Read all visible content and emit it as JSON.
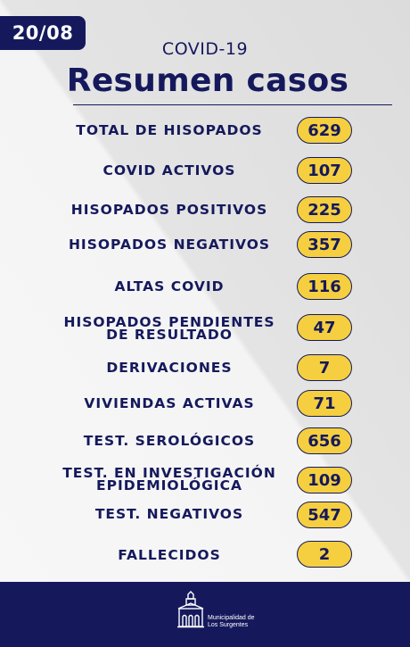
{
  "header": {
    "date": "20/08",
    "subtitle": "COVID-19",
    "title": "Resumen casos"
  },
  "rows": [
    {
      "label": "TOTAL DE HISOPADOS",
      "value": "629"
    },
    {
      "label": "COVID ACTIVOS",
      "value": "107"
    },
    {
      "label": "HISOPADOS POSITIVOS",
      "value": "225"
    },
    {
      "label": "HISOPADOS NEGATIVOS",
      "value": "357"
    },
    {
      "label": "ALTAS COVID",
      "value": "116"
    },
    {
      "label": "HISOPADOS PENDIENTES DE RESULTADO",
      "value": "47"
    },
    {
      "label": "DERIVACIONES",
      "value": "7"
    },
    {
      "label": "VIVIENDAS ACTIVAS",
      "value": "71"
    },
    {
      "label": "TEST. SEROLÓGICOS",
      "value": "656"
    },
    {
      "label": "TEST. EN INVESTIGACIÓN EPIDEMIOLÓGICA",
      "value": "109"
    },
    {
      "label": "TEST. NEGATIVOS",
      "value": "547"
    },
    {
      "label": "FALLECIDOS",
      "value": "2"
    }
  ],
  "footer": {
    "logo_icon": "municipal-building-icon",
    "logo_line1": "Municipalidad de",
    "logo_line2": "Los Surgentes"
  },
  "colors": {
    "navy": "#15195c",
    "pill_yellow": "#f5cf3f",
    "background": "#e4e4e4"
  }
}
